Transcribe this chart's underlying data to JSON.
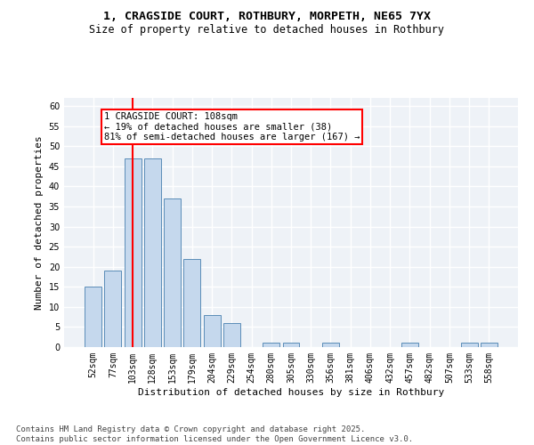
{
  "title_line1": "1, CRAGSIDE COURT, ROTHBURY, MORPETH, NE65 7YX",
  "title_line2": "Size of property relative to detached houses in Rothbury",
  "xlabel": "Distribution of detached houses by size in Rothbury",
  "ylabel": "Number of detached properties",
  "categories": [
    "52sqm",
    "77sqm",
    "103sqm",
    "128sqm",
    "153sqm",
    "179sqm",
    "204sqm",
    "229sqm",
    "254sqm",
    "280sqm",
    "305sqm",
    "330sqm",
    "356sqm",
    "381sqm",
    "406sqm",
    "432sqm",
    "457sqm",
    "482sqm",
    "507sqm",
    "533sqm",
    "558sqm"
  ],
  "values": [
    15,
    19,
    47,
    47,
    37,
    22,
    8,
    6,
    0,
    1,
    1,
    0,
    1,
    0,
    0,
    0,
    1,
    0,
    0,
    1,
    1
  ],
  "bar_color": "#c5d8ed",
  "bar_edge_color": "#5b8db8",
  "red_line_index": 2,
  "annotation_text": "1 CRAGSIDE COURT: 108sqm\n← 19% of detached houses are smaller (38)\n81% of semi-detached houses are larger (167) →",
  "annotation_box_color": "white",
  "annotation_box_edge_color": "red",
  "ylim": [
    0,
    62
  ],
  "yticks": [
    0,
    5,
    10,
    15,
    20,
    25,
    30,
    35,
    40,
    45,
    50,
    55,
    60
  ],
  "background_color": "#eef2f7",
  "grid_color": "white",
  "footer_text": "Contains HM Land Registry data © Crown copyright and database right 2025.\nContains public sector information licensed under the Open Government Licence v3.0.",
  "title_fontsize": 9.5,
  "subtitle_fontsize": 8.5,
  "axis_label_fontsize": 8,
  "tick_fontsize": 7,
  "annotation_fontsize": 7.5,
  "footer_fontsize": 6.5
}
